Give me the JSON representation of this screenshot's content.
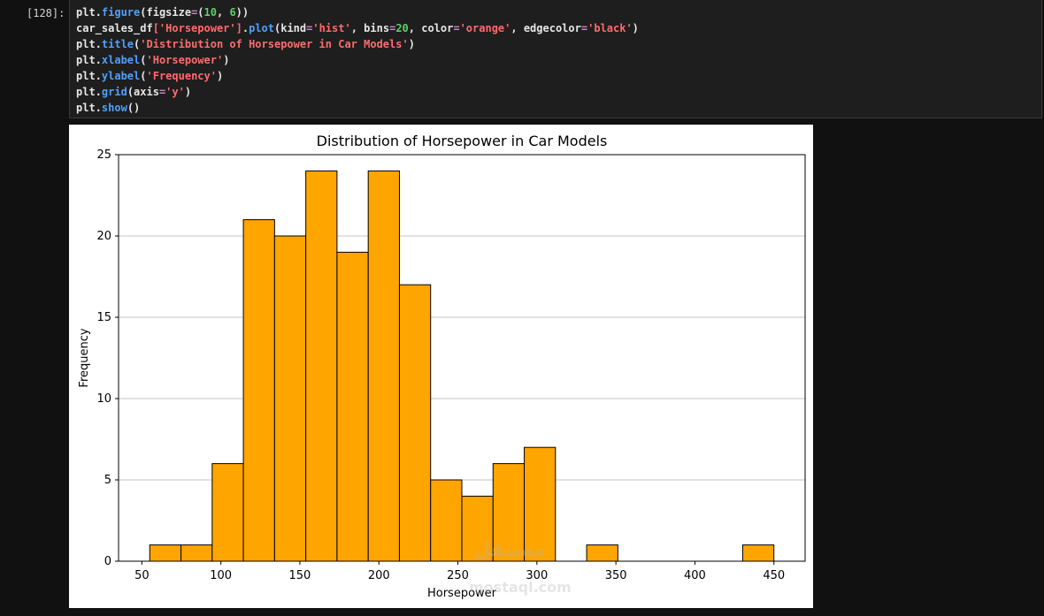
{
  "cell": {
    "prompt": "[128]:",
    "lines": [
      [
        [
          "kw",
          "plt."
        ],
        [
          "fn",
          "figure"
        ],
        [
          "kw",
          "(figsize"
        ],
        [
          "op",
          "="
        ],
        [
          "kw",
          "("
        ],
        [
          "num",
          "10"
        ],
        [
          "kw",
          ", "
        ],
        [
          "num",
          "6"
        ],
        [
          "kw",
          "))"
        ]
      ],
      [
        [
          "kw",
          "car_sales_df"
        ],
        [
          "str",
          "['Horsepower']"
        ],
        [
          "kw",
          "."
        ],
        [
          "fn",
          "plot"
        ],
        [
          "kw",
          "(kind"
        ],
        [
          "op",
          "="
        ],
        [
          "str",
          "'hist'"
        ],
        [
          "kw",
          ", bins"
        ],
        [
          "op",
          "="
        ],
        [
          "num",
          "20"
        ],
        [
          "kw",
          ", color"
        ],
        [
          "op",
          "="
        ],
        [
          "str",
          "'orange'"
        ],
        [
          "kw",
          ", edgecolor"
        ],
        [
          "op",
          "="
        ],
        [
          "str",
          "'black'"
        ],
        [
          "kw",
          ")"
        ]
      ],
      [
        [
          "kw",
          "plt."
        ],
        [
          "fn",
          "title"
        ],
        [
          "kw",
          "("
        ],
        [
          "str",
          "'Distribution of Horsepower in Car Models'"
        ],
        [
          "kw",
          ")"
        ]
      ],
      [
        [
          "kw",
          "plt."
        ],
        [
          "fn",
          "xlabel"
        ],
        [
          "kw",
          "("
        ],
        [
          "str",
          "'Horsepower'"
        ],
        [
          "kw",
          ")"
        ]
      ],
      [
        [
          "kw",
          "plt."
        ],
        [
          "fn",
          "ylabel"
        ],
        [
          "kw",
          "("
        ],
        [
          "str",
          "'Frequency'"
        ],
        [
          "kw",
          ")"
        ]
      ],
      [
        [
          "kw",
          "plt."
        ],
        [
          "fn",
          "grid"
        ],
        [
          "kw",
          "(axis"
        ],
        [
          "op",
          "="
        ],
        [
          "str",
          "'y'"
        ],
        [
          "kw",
          ")"
        ]
      ],
      [
        [
          "kw",
          "plt."
        ],
        [
          "fn",
          "show"
        ],
        [
          "kw",
          "()"
        ]
      ]
    ]
  },
  "watermark": {
    "text1": "مستقل",
    "text2": "mostaql.com"
  },
  "chart_data": {
    "type": "bar",
    "title": "Distribution of Horsepower in Car Models",
    "xlabel": "Horsepower",
    "ylabel": "Frequency",
    "bin_edges": [
      55,
      74.75,
      94.5,
      114.25,
      134,
      153.75,
      173.5,
      193.25,
      213,
      232.75,
      252.5,
      272.25,
      292,
      311.75,
      331.5,
      351.25,
      371,
      390.75,
      410.5,
      430.25,
      450
    ],
    "values": [
      1,
      1,
      6,
      21,
      20,
      24,
      19,
      24,
      17,
      5,
      4,
      6,
      7,
      0,
      1,
      0,
      0,
      0,
      0,
      1
    ],
    "xlim": [
      35.25,
      469.75
    ],
    "ylim": [
      0,
      25
    ],
    "xticks": [
      50,
      100,
      150,
      200,
      250,
      300,
      350,
      400,
      450
    ],
    "yticks": [
      0,
      5,
      10,
      15,
      20,
      25
    ],
    "grid": "y",
    "bar_color": "#ffa500",
    "edge_color": "#000000"
  }
}
